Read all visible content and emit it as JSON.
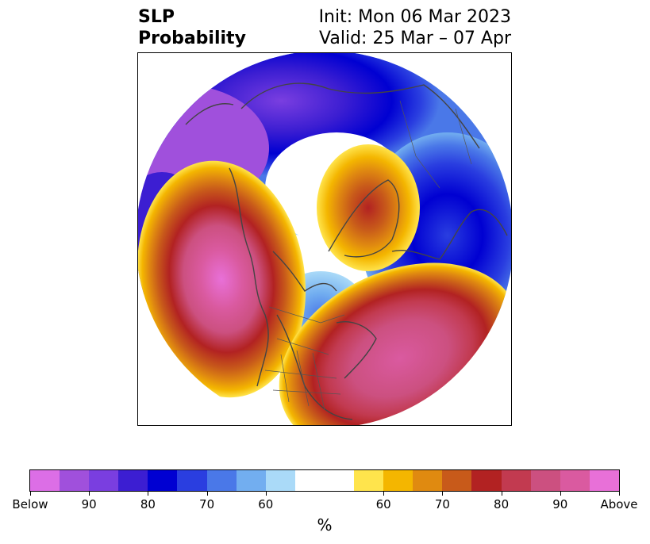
{
  "title": {
    "left_line1": "SLP",
    "left_line2": "Probability",
    "right_line1": "Init: Mon 06 Mar 2023",
    "right_line2": "Valid: 25 Mar – 07 Apr"
  },
  "map": {
    "projection": "north-polar-stereographic",
    "field": "sea level pressure probability",
    "features": [
      {
        "name": "above-anomaly-north-pacific",
        "category": "Above",
        "peak": ">90"
      },
      {
        "name": "above-anomaly-western-atlantic",
        "category": "Above",
        "peak": ">90"
      },
      {
        "name": "above-anomaly-greenland",
        "category": "Above",
        "peak": "80"
      },
      {
        "name": "below-anomaly-siberia-arctic",
        "category": "Below",
        "peak": ">90"
      },
      {
        "name": "below-anomaly-europe",
        "category": "Below",
        "peak": "80"
      },
      {
        "name": "below-anomaly-central-canada",
        "category": "Below",
        "peak": "60"
      }
    ]
  },
  "colorbar": {
    "label": "%",
    "below_colors": [
      "#dc6ee6",
      "#a050dc",
      "#7a3ee0",
      "#3c1ed2",
      "#0000d2",
      "#2a3ee0",
      "#4a78e8",
      "#72aef0",
      "#aadaf8"
    ],
    "neutral_color": "#ffffff",
    "above_colors": [
      "#ffe44c",
      "#f4b600",
      "#e08a10",
      "#c85a1a",
      "#b22222",
      "#c23a50",
      "#cc5080",
      "#da5aa0",
      "#e870d8"
    ],
    "tick_labels": [
      "Below",
      "90",
      "80",
      "70",
      "60",
      "60",
      "70",
      "80",
      "90",
      "Above"
    ]
  }
}
